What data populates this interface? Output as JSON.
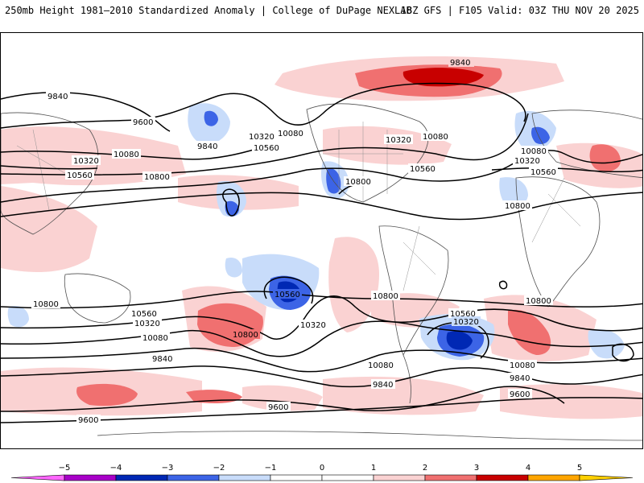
{
  "header": {
    "title": "250mb Height 1981–2010 Standardized Anomaly | College of DuPage NEXLAB",
    "run_info": "18Z GFS | F105 Valid: 03Z THU NOV 20 2025"
  },
  "contour_labels": [
    {
      "id": "9840-a",
      "text": "9840"
    },
    {
      "id": "9840-b",
      "text": "9840"
    },
    {
      "id": "9600-a",
      "text": "9600"
    },
    {
      "id": "9840-c",
      "text": "9840"
    },
    {
      "id": "10080-a",
      "text": "10080"
    },
    {
      "id": "10320-a",
      "text": "10320"
    },
    {
      "id": "10560-a",
      "text": "10560"
    },
    {
      "id": "10800-a",
      "text": "10800"
    },
    {
      "id": "10080-b",
      "text": "10080"
    },
    {
      "id": "10320-b",
      "text": "10320"
    },
    {
      "id": "10560-b",
      "text": "10560"
    },
    {
      "id": "10320-c",
      "text": "10320"
    },
    {
      "id": "10080-c",
      "text": "10080"
    },
    {
      "id": "10560-c",
      "text": "10560"
    },
    {
      "id": "10800-b",
      "text": "10800"
    },
    {
      "id": "10080-d",
      "text": "10080"
    },
    {
      "id": "10320-d",
      "text": "10320"
    },
    {
      "id": "10560-d",
      "text": "10560"
    },
    {
      "id": "10800-c",
      "text": "10800"
    },
    {
      "id": "10800-d",
      "text": "10800"
    },
    {
      "id": "10560-e",
      "text": "10560"
    },
    {
      "id": "10320-e",
      "text": "10320"
    },
    {
      "id": "10080-e",
      "text": "10080"
    },
    {
      "id": "9840-d",
      "text": "9840"
    },
    {
      "id": "10800-e",
      "text": "10800"
    },
    {
      "id": "10560-f",
      "text": "10560"
    },
    {
      "id": "10320-f",
      "text": "10320"
    },
    {
      "id": "10800-f",
      "text": "10800"
    },
    {
      "id": "10560-g",
      "text": "10560"
    },
    {
      "id": "10320-g",
      "text": "10320"
    },
    {
      "id": "10080-f",
      "text": "10080"
    },
    {
      "id": "9840-e",
      "text": "9840"
    },
    {
      "id": "10800-g",
      "text": "10800"
    },
    {
      "id": "10080-g",
      "text": "10080"
    },
    {
      "id": "9840-f",
      "text": "9840"
    },
    {
      "id": "9600-b",
      "text": "9600"
    },
    {
      "id": "9600-c",
      "text": "9600"
    },
    {
      "id": "9600-d",
      "text": "9600"
    }
  ],
  "legend": {
    "ticks": [
      "−5",
      "−4",
      "−3",
      "−2",
      "−1",
      "0",
      "1",
      "2",
      "3",
      "4",
      "5"
    ],
    "bins": [
      {
        "range": "-5to-4",
        "color": "#a800c8"
      },
      {
        "range": "-4to-3",
        "color": "#0028b4"
      },
      {
        "range": "-3to-2",
        "color": "#3c64e6"
      },
      {
        "range": "-2to-1",
        "color": "#c8dcfa"
      },
      {
        "range": "-1to0",
        "color": "#ffffff"
      },
      {
        "range": "0to1",
        "color": "#ffffff"
      },
      {
        "range": "1to2",
        "color": "#fad2d2"
      },
      {
        "range": "2to3",
        "color": "#f07070"
      },
      {
        "range": "3to4",
        "color": "#c80000"
      },
      {
        "range": "4to5",
        "color": "#ffa500"
      }
    ],
    "low_arrow_color": "#ff66ff",
    "high_arrow_color": "#ffd000"
  }
}
